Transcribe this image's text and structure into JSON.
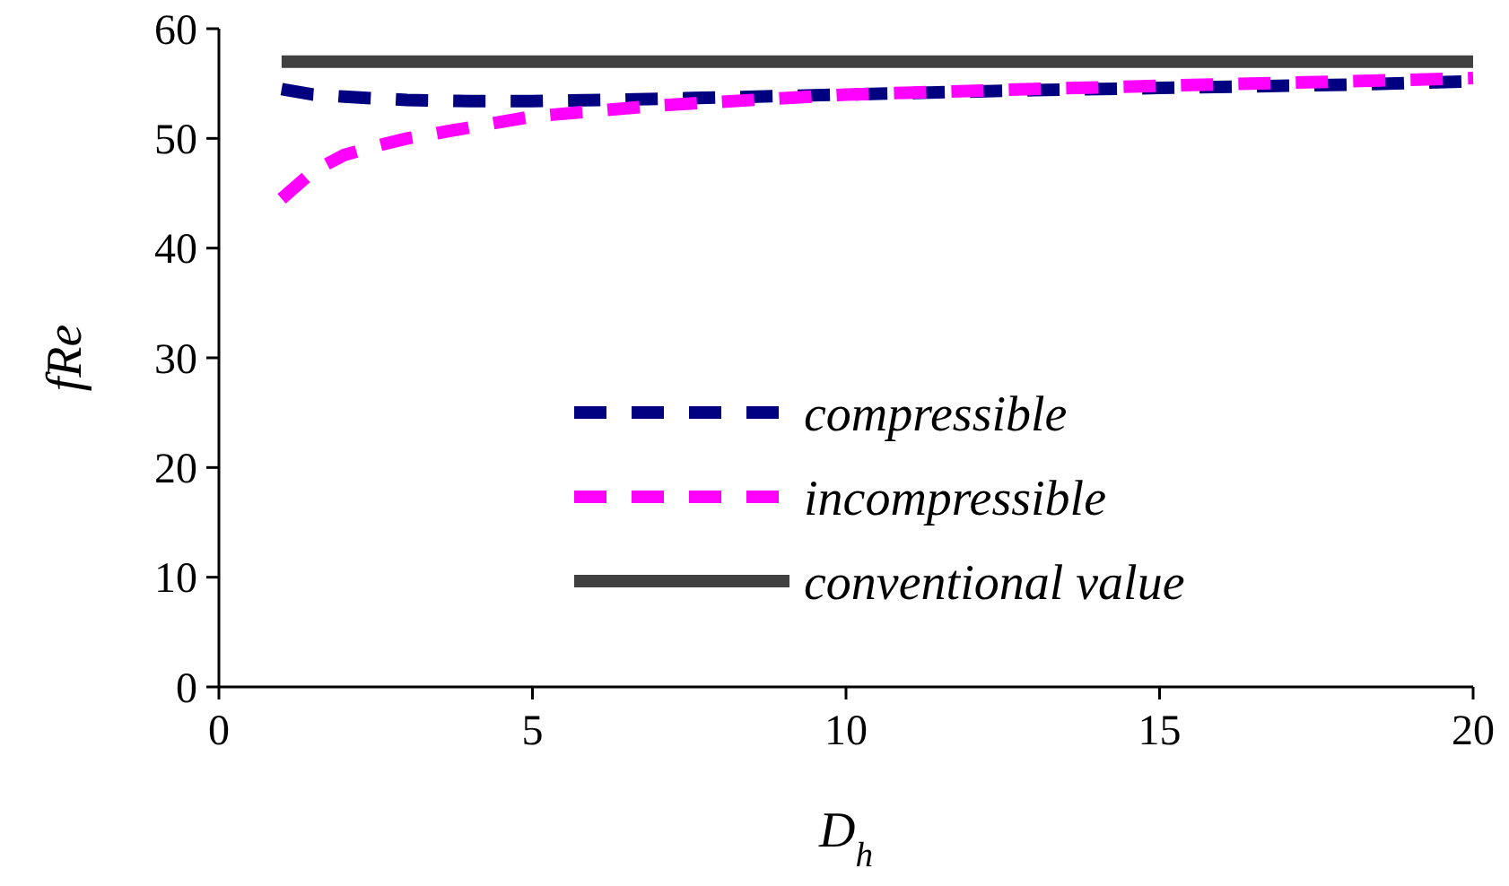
{
  "chart_data": {
    "type": "line",
    "xlabel": "D$_{h}$",
    "ylabel": "fRe",
    "xlim": [
      0,
      20
    ],
    "ylim": [
      0,
      60
    ],
    "xticks": [
      0,
      5,
      10,
      15,
      20
    ],
    "yticks": [
      0,
      10,
      20,
      30,
      40,
      50,
      60
    ],
    "legend": "bottom right",
    "grid": false,
    "marker": "none",
    "series": [
      {
        "name": "compressible",
        "color": "#000080",
        "line_style": "dashed",
        "x": [
          1,
          1.5,
          2,
          3,
          4,
          5,
          7,
          10,
          13,
          15,
          18,
          20
        ],
        "values": [
          54.5,
          54,
          53.8,
          53.5,
          53.4,
          53.4,
          53.6,
          54,
          54.4,
          54.6,
          54.9,
          55.2
        ]
      },
      {
        "name": "incompressible",
        "color": "#ff00ff",
        "line_style": "dashed",
        "x": [
          1,
          1.5,
          2,
          2.5,
          3,
          4,
          5,
          7,
          10,
          13,
          15,
          18,
          20
        ],
        "values": [
          44.5,
          47,
          48.5,
          49.3,
          50,
          51,
          52,
          53,
          54,
          54.5,
          54.8,
          55.2,
          55.5
        ]
      },
      {
        "name": "conventional value",
        "color": "#404040",
        "line_style": "solid",
        "x": [
          1,
          20
        ],
        "values": [
          57,
          57
        ]
      }
    ]
  }
}
